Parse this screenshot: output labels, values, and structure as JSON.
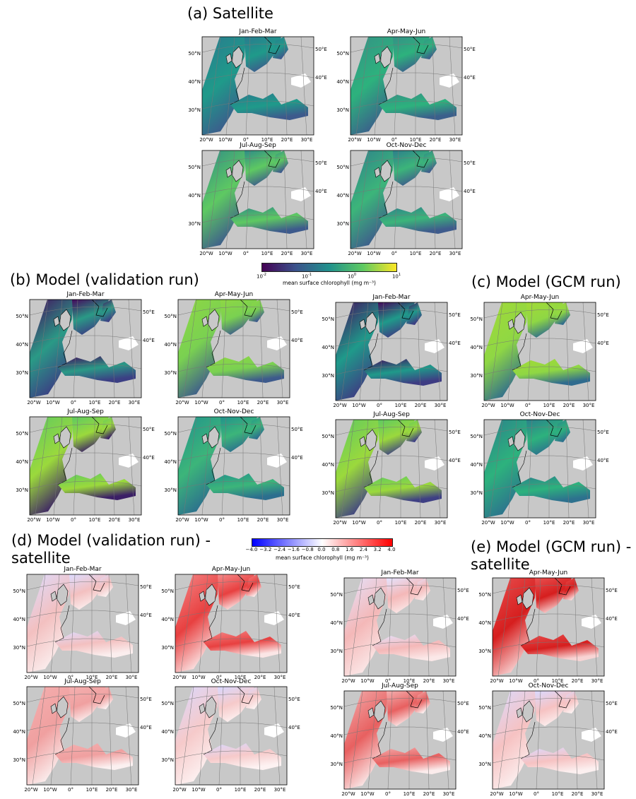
{
  "panels": {
    "a": {
      "heading": "(a) Satellite"
    },
    "b": {
      "heading": "(b) Model (validation run)"
    },
    "c": {
      "heading": "(c) Model (GCM run)"
    },
    "d": {
      "heading_line1": "(d) Model (validation run) -",
      "heading_line2": "satellite"
    },
    "e": {
      "heading_line1": "(e) Model (GCM run) -",
      "heading_line2": "satellite"
    }
  },
  "seasons": [
    "Jan-Feb-Mar",
    "Apr-May-Jun",
    "Jul-Aug-Sep",
    "Oct-Nov-Dec"
  ],
  "axis_labels": {
    "lat": [
      "50°N",
      "40°N",
      "30°N"
    ],
    "lon_bottom": [
      "20°W",
      "10°W",
      "0°",
      "10°E",
      "20°E",
      "30°E"
    ],
    "lon_right": [
      "50°E",
      "40°E"
    ]
  },
  "colorbar_log": {
    "ticks": [
      {
        "base": "10",
        "exp": "-2"
      },
      {
        "base": "10",
        "exp": "-1"
      },
      {
        "base": "10",
        "exp": "0"
      },
      {
        "base": "10",
        "exp": "1"
      }
    ],
    "label": "mean surface chlorophyll (mg m⁻³)",
    "colors": [
      "#440154",
      "#3b528b",
      "#21918c",
      "#5ec962",
      "#fde725"
    ]
  },
  "colorbar_diff": {
    "ticks": [
      "−4.0",
      "−3.2",
      "−2.4",
      "−1.6",
      "−0.8",
      "0.0",
      "0.8",
      "1.6",
      "2.4",
      "3.2",
      "4.0"
    ],
    "label": "mean surface chlorophyll (mg m⁻³)",
    "colors": [
      "#0000ff",
      "#ffffff",
      "#ff0000"
    ]
  },
  "map_colors": {
    "land": "#c8c8c8",
    "grid": "#777777",
    "coast": "#000000"
  }
}
